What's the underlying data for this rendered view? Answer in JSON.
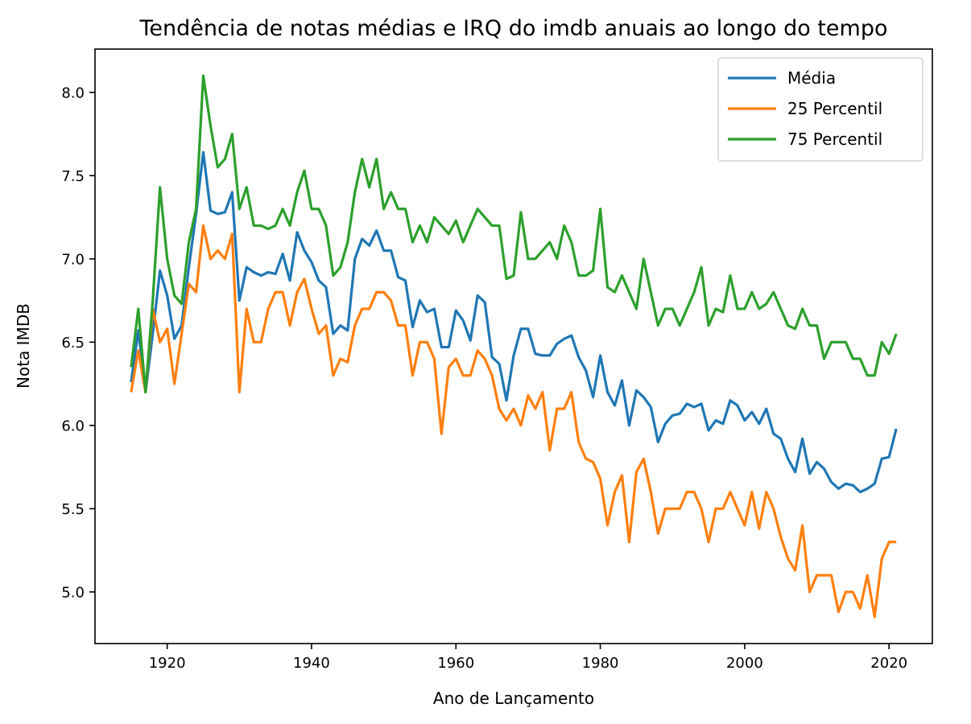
{
  "chart_data": {
    "type": "line",
    "title": "Tendência de notas médias e IRQ do imdb anuais ao longo do tempo",
    "xlabel": "Ano de Lançamento",
    "ylabel": "Nota IMDB",
    "xlim": [
      1910,
      2026
    ],
    "ylim": [
      4.69,
      8.26
    ],
    "xticks": [
      1920,
      1940,
      1960,
      1980,
      2000,
      2020
    ],
    "yticks": [
      5.0,
      5.5,
      6.0,
      6.5,
      7.0,
      7.5,
      8.0
    ],
    "xtick_labels": [
      "1920",
      "1940",
      "1960",
      "1980",
      "2000",
      "2020"
    ],
    "ytick_labels": [
      "5.0",
      "5.5",
      "6.0",
      "6.5",
      "7.0",
      "7.5",
      "8.0"
    ],
    "legend_position": "top-right",
    "x": [
      1915,
      1916,
      1917,
      1918,
      1919,
      1920,
      1921,
      1922,
      1923,
      1924,
      1925,
      1926,
      1927,
      1928,
      1929,
      1930,
      1931,
      1932,
      1933,
      1934,
      1935,
      1936,
      1937,
      1938,
      1939,
      1940,
      1941,
      1942,
      1943,
      1944,
      1945,
      1946,
      1947,
      1948,
      1949,
      1950,
      1951,
      1952,
      1953,
      1954,
      1955,
      1956,
      1957,
      1958,
      1959,
      1960,
      1961,
      1962,
      1963,
      1964,
      1965,
      1966,
      1967,
      1968,
      1969,
      1970,
      1971,
      1972,
      1973,
      1974,
      1975,
      1976,
      1977,
      1978,
      1979,
      1980,
      1981,
      1982,
      1983,
      1984,
      1985,
      1986,
      1987,
      1988,
      1989,
      1990,
      1991,
      1992,
      1993,
      1994,
      1995,
      1996,
      1997,
      1998,
      1999,
      2000,
      2001,
      2002,
      2003,
      2004,
      2005,
      2006,
      2007,
      2008,
      2009,
      2010,
      2011,
      2012,
      2013,
      2014,
      2015,
      2016,
      2017,
      2018,
      2019,
      2020,
      2021
    ],
    "series": [
      {
        "name": "Média",
        "color": "#1f77b4",
        "values": [
          6.26,
          6.57,
          6.2,
          6.55,
          6.93,
          6.78,
          6.52,
          6.6,
          6.95,
          7.27,
          7.64,
          7.29,
          7.27,
          7.28,
          7.4,
          6.75,
          6.95,
          6.92,
          6.9,
          6.92,
          6.91,
          7.03,
          6.87,
          7.16,
          7.05,
          6.98,
          6.87,
          6.83,
          6.55,
          6.6,
          6.57,
          7.0,
          7.12,
          7.08,
          7.17,
          7.05,
          7.05,
          6.89,
          6.87,
          6.59,
          6.75,
          6.68,
          6.7,
          6.47,
          6.47,
          6.69,
          6.63,
          6.51,
          6.78,
          6.74,
          6.41,
          6.37,
          6.15,
          6.42,
          6.58,
          6.58,
          6.43,
          6.42,
          6.42,
          6.49,
          6.52,
          6.54,
          6.41,
          6.33,
          6.17,
          6.42,
          6.2,
          6.12,
          6.27,
          6.0,
          6.21,
          6.17,
          6.11,
          5.9,
          6.01,
          6.06,
          6.07,
          6.13,
          6.11,
          6.13,
          5.97,
          6.03,
          6.01,
          6.15,
          6.12,
          6.03,
          6.08,
          6.01,
          6.1,
          5.95,
          5.92,
          5.8,
          5.72,
          5.92,
          5.71,
          5.78,
          5.74,
          5.66,
          5.62,
          5.65,
          5.64,
          5.6,
          5.62,
          5.65,
          5.8,
          5.81,
          5.98
        ]
      },
      {
        "name": "25 Percentil",
        "color": "#ff7f0e",
        "values": [
          6.2,
          6.45,
          6.2,
          6.7,
          6.5,
          6.58,
          6.25,
          6.55,
          6.85,
          6.8,
          7.2,
          7.0,
          7.05,
          7.0,
          7.15,
          6.2,
          6.7,
          6.5,
          6.5,
          6.7,
          6.8,
          6.8,
          6.6,
          6.8,
          6.88,
          6.7,
          6.55,
          6.6,
          6.3,
          6.4,
          6.38,
          6.6,
          6.7,
          6.7,
          6.8,
          6.8,
          6.75,
          6.6,
          6.6,
          6.3,
          6.5,
          6.5,
          6.4,
          5.95,
          6.35,
          6.4,
          6.3,
          6.3,
          6.45,
          6.4,
          6.3,
          6.1,
          6.03,
          6.1,
          6.0,
          6.18,
          6.1,
          6.2,
          5.85,
          6.1,
          6.1,
          6.2,
          5.9,
          5.8,
          5.78,
          5.68,
          5.4,
          5.6,
          5.7,
          5.3,
          5.72,
          5.8,
          5.6,
          5.35,
          5.5,
          5.5,
          5.5,
          5.6,
          5.6,
          5.5,
          5.3,
          5.5,
          5.5,
          5.6,
          5.5,
          5.4,
          5.6,
          5.38,
          5.6,
          5.5,
          5.33,
          5.2,
          5.13,
          5.4,
          5.0,
          5.1,
          5.1,
          5.1,
          4.88,
          5.0,
          5.0,
          4.9,
          5.1,
          4.85,
          5.2,
          5.3,
          5.3
        ]
      },
      {
        "name": "75 Percentil",
        "color": "#2ca02c",
        "values": [
          6.35,
          6.7,
          6.2,
          6.75,
          7.43,
          7.0,
          6.78,
          6.73,
          7.1,
          7.3,
          8.1,
          7.8,
          7.55,
          7.6,
          7.75,
          7.3,
          7.43,
          7.2,
          7.2,
          7.18,
          7.2,
          7.3,
          7.2,
          7.4,
          7.53,
          7.3,
          7.3,
          7.2,
          6.9,
          6.95,
          7.1,
          7.4,
          7.6,
          7.43,
          7.6,
          7.3,
          7.4,
          7.3,
          7.3,
          7.1,
          7.2,
          7.1,
          7.25,
          7.2,
          7.15,
          7.23,
          7.1,
          7.2,
          7.3,
          7.25,
          7.2,
          7.2,
          6.88,
          6.9,
          7.28,
          7.0,
          7.0,
          7.05,
          7.1,
          7.0,
          7.2,
          7.1,
          6.9,
          6.9,
          6.93,
          7.3,
          6.83,
          6.8,
          6.9,
          6.8,
          6.7,
          7.0,
          6.8,
          6.6,
          6.7,
          6.7,
          6.6,
          6.7,
          6.8,
          6.95,
          6.6,
          6.7,
          6.68,
          6.9,
          6.7,
          6.7,
          6.8,
          6.7,
          6.73,
          6.8,
          6.7,
          6.6,
          6.58,
          6.7,
          6.6,
          6.6,
          6.4,
          6.5,
          6.5,
          6.5,
          6.4,
          6.4,
          6.3,
          6.3,
          6.5,
          6.43,
          6.55
        ]
      }
    ]
  }
}
